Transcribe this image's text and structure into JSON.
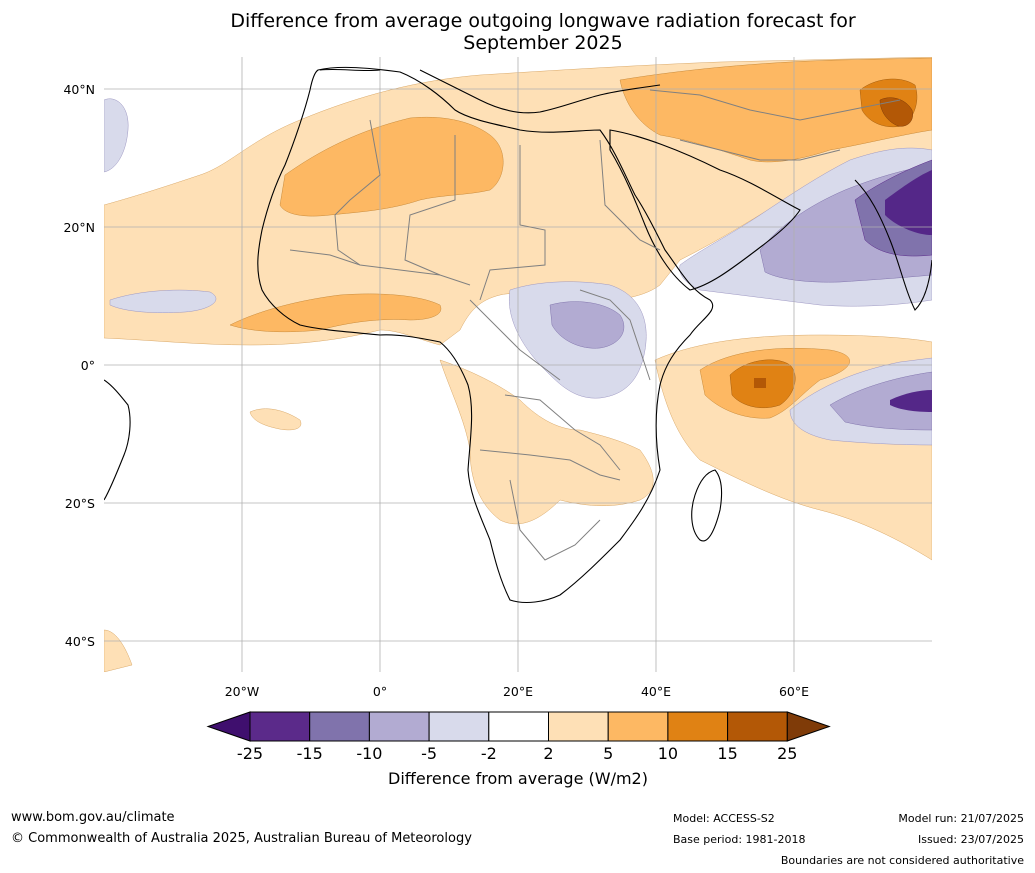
{
  "title_line1": "Difference from average outgoing longwave radiation forecast for",
  "title_line2": "September 2025",
  "lat_labels": [
    "40°N",
    "20°N",
    "0°",
    "20°S",
    "40°S"
  ],
  "lon_labels": [
    "20°W",
    "0°",
    "20°E",
    "40°E",
    "60°E"
  ],
  "colorbar": {
    "ticks": [
      "-25",
      "-15",
      "-10",
      "-5",
      "-2",
      "2",
      "5",
      "10",
      "15",
      "25"
    ],
    "colors": [
      "#3f0f6e",
      "#5b2a8a",
      "#8073ac",
      "#b2abd2",
      "#d8daeb",
      "#ffffff",
      "#fee0b6",
      "#fdb863",
      "#e08214",
      "#b35806",
      "#7f3b08"
    ],
    "title": "Difference from average (W/m2)"
  },
  "footer": {
    "website": "www.bom.gov.au/climate",
    "copyright": "© Commonwealth of Australia 2025, Australian Bureau of Meteorology",
    "model": "Model: ACCESS-S2",
    "base_period": "Base period: 1981-2018",
    "model_run": "Model run: 21/07/2025",
    "issued": "Issued: 23/07/2025",
    "disclaimer": "Boundaries are not considered authoritative"
  }
}
